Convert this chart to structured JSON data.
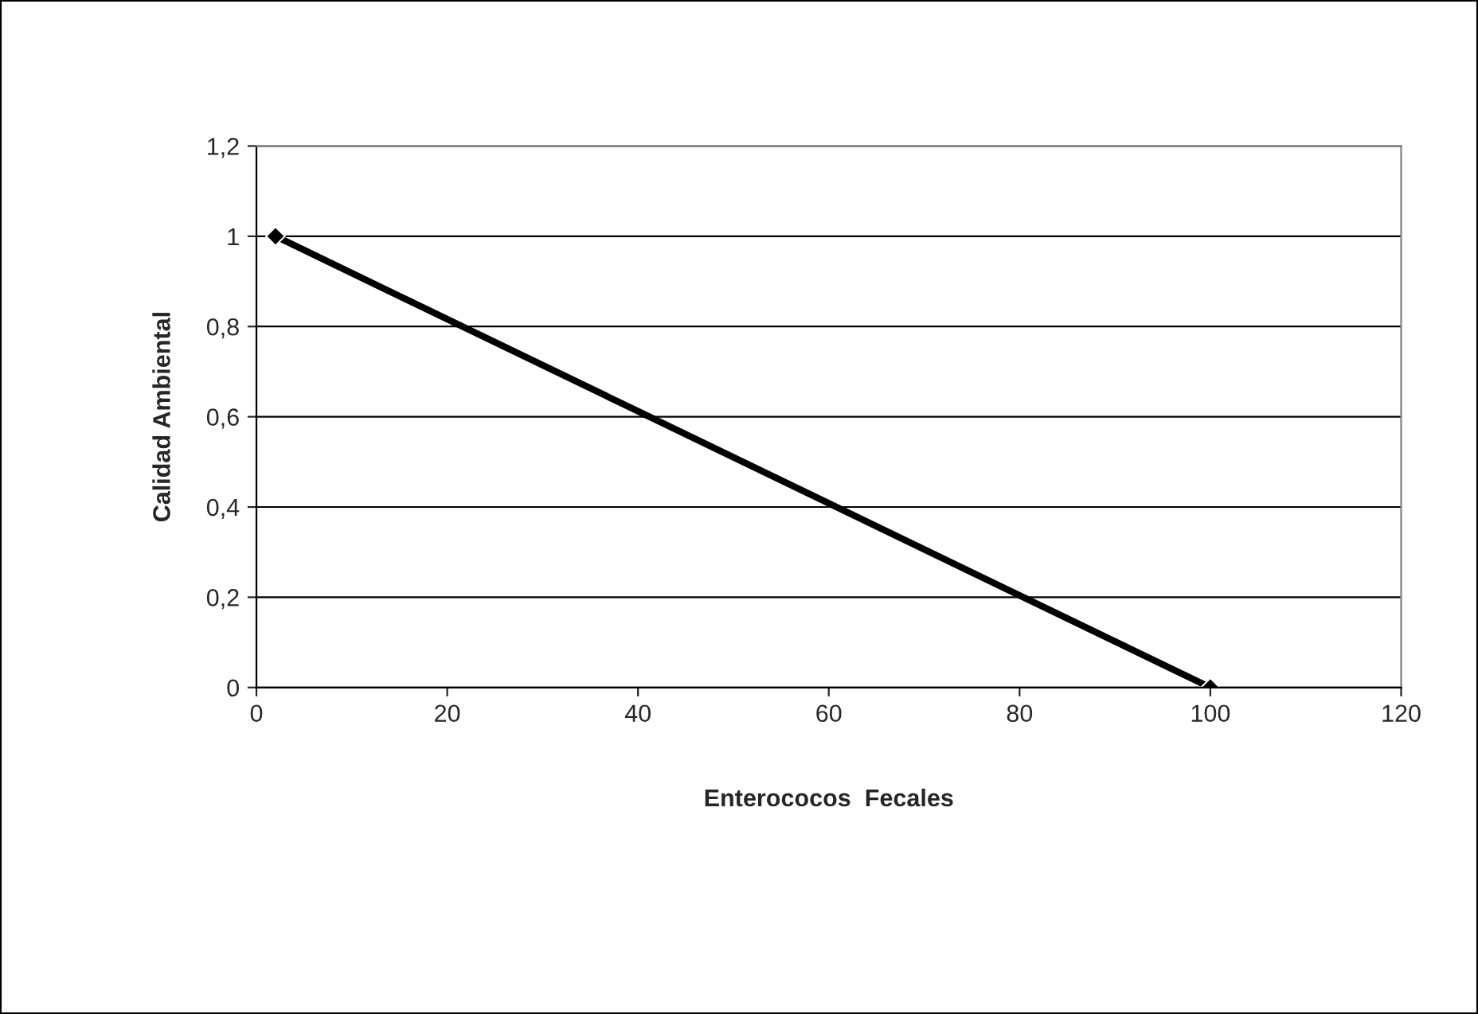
{
  "chart_data": {
    "type": "line",
    "xlabel": "Enterococos  Fecales",
    "ylabel": "Calidad Ambiental",
    "x": [
      2,
      100
    ],
    "series": [
      {
        "color": "#000000",
        "values": [
          1,
          0
        ]
      }
    ],
    "xlim": [
      0,
      120
    ],
    "xticks": [
      0,
      20,
      40,
      60,
      80,
      100,
      120
    ],
    "ylim": [
      0,
      1.2
    ],
    "yticks": [
      0,
      {
        "value": 0.2,
        "label": "0,2"
      },
      {
        "value": 0.4,
        "label": "0,4"
      },
      {
        "value": 0.6,
        "label": "0,6"
      },
      {
        "value": 0.8,
        "label": "0,8"
      },
      1,
      {
        "value": 1.2,
        "label": "1,2"
      }
    ],
    "grid": "y",
    "marker": "diamond",
    "line_style": "solid",
    "legend": false
  }
}
